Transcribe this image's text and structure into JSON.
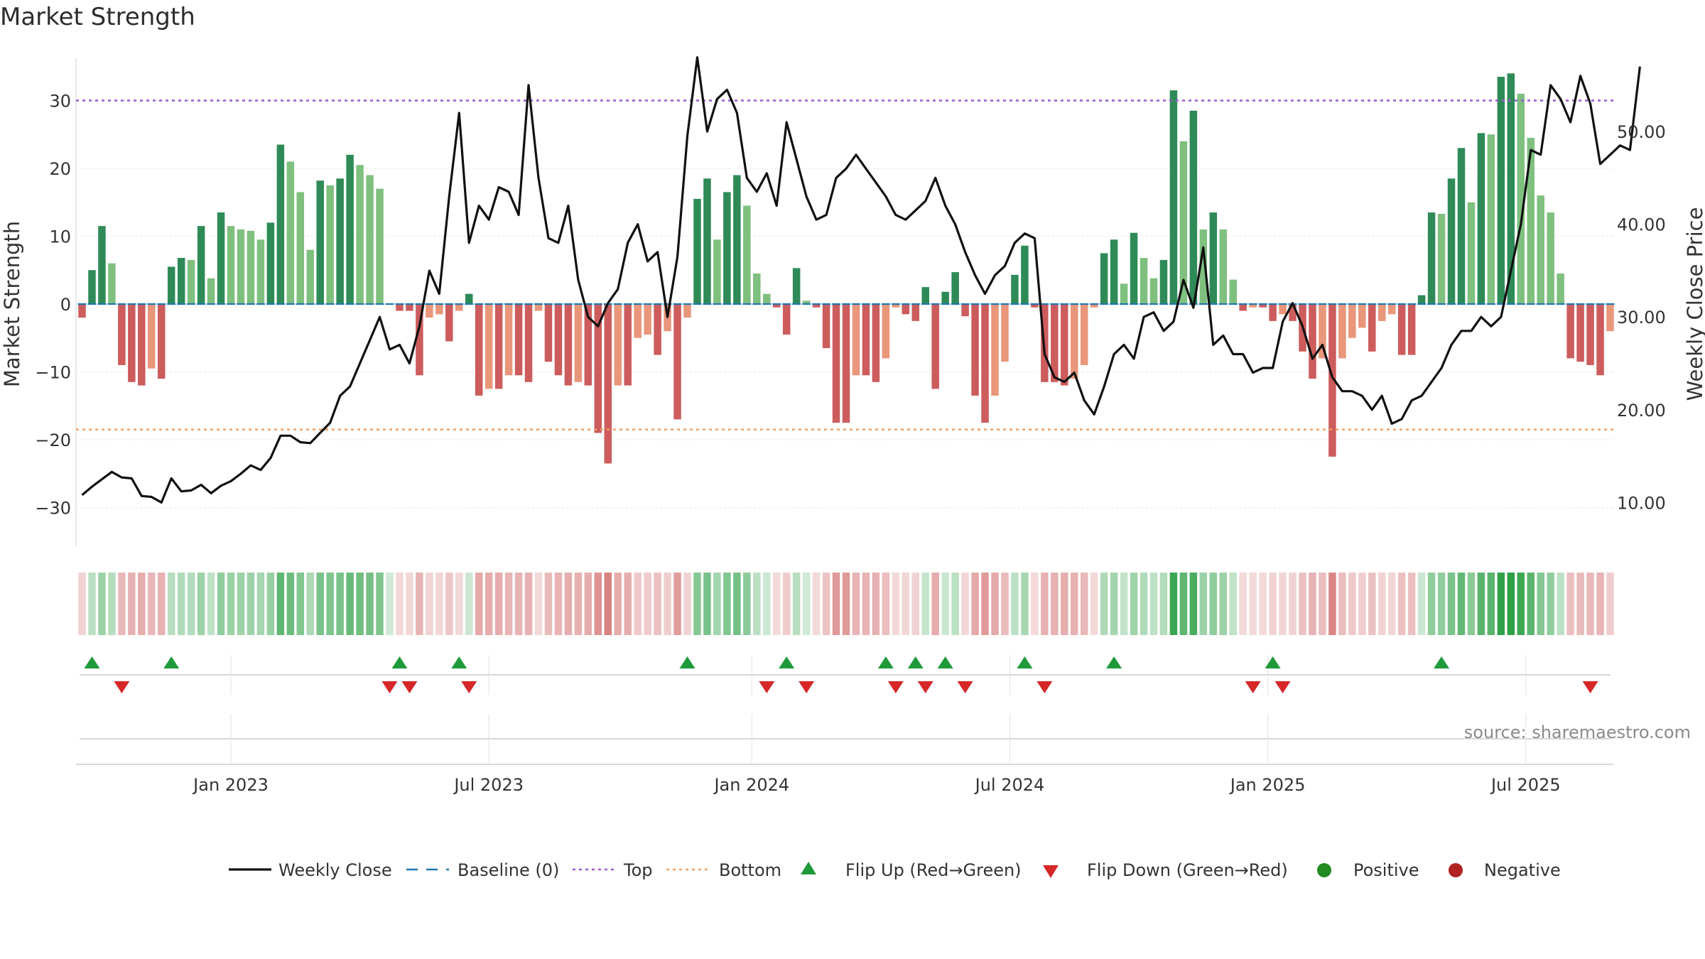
{
  "chart_data": {
    "type": "bar",
    "title": "Market Strength",
    "ylabel_left": "Market Strength",
    "ylabel_right": "Weekly Close Price",
    "ylim_left": [
      -35,
      35
    ],
    "ylim_right": [
      5.2,
      57.9
    ],
    "left_ticks": [
      "30",
      "20",
      "10",
      "0",
      "−10",
      "−20",
      "−30"
    ],
    "left_tick_values": [
      30,
      20,
      10,
      0,
      -10,
      -20,
      -30
    ],
    "right_ticks": [
      "50.00",
      "40.00",
      "30.00",
      "20.00",
      "10.00"
    ],
    "right_tick_values": [
      50,
      40,
      30,
      20,
      10
    ],
    "x_ticks": [
      "Jan 2023",
      "Jul 2023",
      "Jan 2024",
      "Jul 2024",
      "Jan 2025",
      "Jul 2025"
    ],
    "x_tick_weeks": [
      15,
      41,
      67.5,
      93.5,
      119.5,
      145.5
    ],
    "top_line": 30,
    "bottom_line": -18.5,
    "baseline": 0,
    "strength": [
      -2,
      5,
      11.5,
      6,
      -9,
      -11.5,
      -12,
      -9.5,
      -11,
      5.5,
      6.8,
      6.5,
      11.5,
      3.8,
      13.5,
      11.5,
      11,
      10.8,
      9.5,
      12,
      23.5,
      21,
      16.5,
      8,
      18.2,
      17.5,
      18.5,
      22,
      20.5,
      19,
      17,
      0,
      -1,
      -1,
      -10.5,
      -2,
      -1.5,
      -5.5,
      -1,
      1.5,
      -13.5,
      -12.5,
      -12.5,
      -10.5,
      -10.5,
      -11.5,
      -1,
      -8.5,
      -10.5,
      -12,
      -11.5,
      -12,
      -19,
      -23.5,
      -12,
      -12,
      -5,
      -4.5,
      -7.5,
      -4,
      -17,
      -2,
      15.5,
      18.5,
      9.5,
      16.5,
      19,
      14.5,
      4.5,
      1.5,
      -0.5,
      -4.5,
      5.3,
      0.5,
      -0.5,
      -6.5,
      -17.5,
      -17.5,
      -10.5,
      -10.5,
      -11.5,
      -8,
      -0.5,
      -1.5,
      -2.5,
      2.5,
      -12.5,
      1.8,
      4.7,
      -1.8,
      -13.5,
      -17.5,
      -13.5,
      -8.5,
      4.3,
      8.6,
      -0.5,
      -11.5,
      -11.5,
      -12,
      -11,
      -9,
      -0.5,
      7.5,
      9.5,
      3,
      10.5,
      6.8,
      3.8,
      6.5,
      31.5,
      24,
      28.5,
      11,
      13.5,
      11,
      3.6,
      -1,
      -0.5,
      -0.5,
      -2.5,
      -1.5,
      -2.5,
      -7,
      -11,
      -8,
      -22.5,
      -8,
      -5,
      -3.5,
      -7,
      -2.5,
      -1.5,
      -7.5,
      -7.5,
      1.3,
      13.5,
      13.3,
      18.5,
      23,
      15,
      25.2,
      25,
      33.5,
      34,
      31,
      24.5,
      16,
      13.5,
      4.5,
      -8,
      -8.5,
      -9,
      -10.5,
      -4
    ],
    "weekly_close": [
      10.8,
      11.7,
      12.5,
      13.3,
      12.7,
      12.6,
      10.7,
      10.6,
      10,
      12.6,
      11.2,
      11.3,
      11.9,
      11,
      11.8,
      12.3,
      13.1,
      14,
      13.5,
      14.8,
      17.2,
      17.2,
      16.5,
      16.4,
      17.5,
      18.6,
      21.5,
      22.5,
      25,
      27.5,
      30,
      26.5,
      27,
      25,
      29,
      35,
      32.5,
      43,
      52,
      38,
      42,
      40.5,
      44,
      43.5,
      41,
      55,
      45,
      38.5,
      38,
      42,
      34,
      30,
      29,
      31.5,
      33,
      38,
      40,
      36,
      37,
      30,
      36.5,
      49.5,
      58,
      50,
      53.5,
      54.5,
      52,
      45,
      43.5,
      45.5,
      42,
      51,
      47,
      43,
      40.5,
      41,
      45,
      46,
      47.5,
      46,
      44.5,
      43,
      41,
      40.5,
      41.5,
      42.5,
      45,
      42,
      40,
      37,
      34.5,
      32.5,
      34.5,
      35.5,
      38,
      39,
      38.5,
      26,
      23.5,
      23,
      24,
      21,
      19.5,
      22.5,
      26,
      27,
      25.5,
      30,
      30.5,
      28.5,
      29.5,
      34,
      31,
      37.5,
      27,
      28,
      26,
      26,
      24,
      24.5,
      24.5,
      29.5,
      31.5,
      29,
      25.5,
      27,
      23.5,
      22,
      22,
      21.5,
      20,
      21.5,
      18.5,
      19,
      21,
      21.5,
      23,
      24.5,
      27,
      28.5,
      28.5,
      30,
      29,
      30,
      35,
      40,
      48,
      47.5,
      55,
      53.5,
      51,
      56,
      53,
      46.5,
      47.5,
      48.5,
      48,
      57
    ]
  },
  "colors": {
    "strong_green": "#2e8b57",
    "light_green": "#7fc07f",
    "strong_red": "#cd5c5c",
    "light_red": "#e9967a",
    "top_line": "#9b59d0",
    "bottom_line": "#f0a060",
    "baseline": "#1f77b4",
    "flip_up": "#1f9a3a",
    "flip_down": "#d62728",
    "positive": "#228b22",
    "negative": "#b22222",
    "close_line": "#111111"
  },
  "flips_up": [
    1,
    9,
    32,
    38,
    61,
    71,
    81,
    84,
    87,
    95,
    104,
    120,
    137
  ],
  "flips_down": [
    4,
    31,
    33,
    39,
    69,
    73,
    82,
    85,
    89,
    97,
    118,
    121,
    152
  ],
  "source": "source: sharemaestro.com",
  "legend": {
    "weekly_close": "Weekly Close",
    "baseline": "Baseline (0)",
    "top": "Top",
    "bottom": "Bottom",
    "flip_up": "Flip Up (Red→Green)",
    "flip_down": "Flip Down (Green→Red)",
    "positive": "Positive",
    "negative": "Negative"
  }
}
